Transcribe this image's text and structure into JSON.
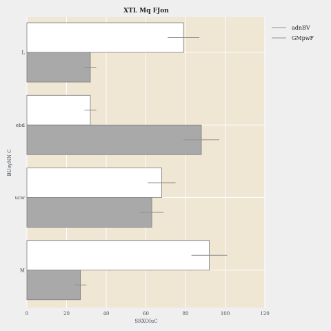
{
  "chart_data": {
    "type": "bar",
    "orientation": "horizontal",
    "title": "XTL Mq  FJon",
    "xlabel": "SRXOIuC",
    "ylabel": "BUoyNN C",
    "categories": [
      "L",
      "ebd",
      "ucw",
      "M"
    ],
    "xlim": [
      0,
      120
    ],
    "xticks": [
      0,
      20,
      40,
      60,
      80,
      100,
      120
    ],
    "grid": true,
    "legend_position": "outside-top-right",
    "series": [
      {
        "name": "adnBV",
        "color": "#ffffff",
        "values": [
          79,
          32,
          68,
          92
        ],
        "errors": [
          8,
          3,
          7,
          9
        ]
      },
      {
        "name": "GMpwF",
        "color": "#a9a9a9",
        "values": [
          32,
          88,
          63,
          27
        ],
        "errors": [
          3,
          9,
          6,
          3
        ]
      }
    ],
    "colors": {
      "plot_background": "#efe6d3",
      "figure_background": "#efefef",
      "grid": "#ffffff",
      "bar_edge": "#7a7a7a",
      "error_bar": "#8f8f8f"
    }
  }
}
